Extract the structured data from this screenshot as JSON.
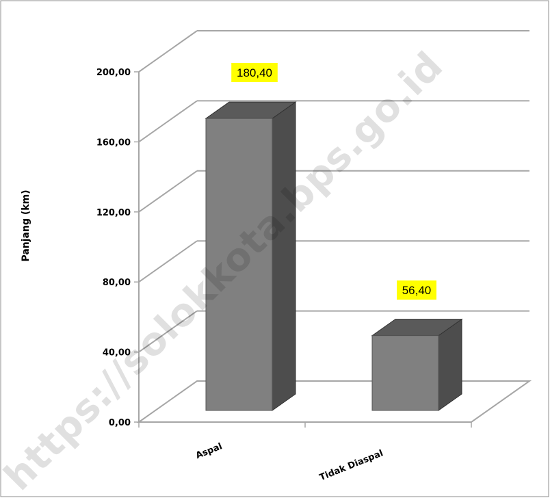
{
  "chart_data": {
    "type": "bar",
    "categories": [
      "Aspal",
      "Tidak Diaspal"
    ],
    "values": [
      180.4,
      56.4
    ],
    "data_labels": [
      "180,40",
      "56,40"
    ],
    "ylabel": "Panjang (km)",
    "ylim": [
      0,
      200
    ],
    "yticks": [
      "0,00",
      "40,00",
      "80,00",
      "120,00",
      "160,00",
      "200,00"
    ],
    "grid": true,
    "legend": "none",
    "bar_color": "#808080",
    "label_bg_color": "#ffff00"
  },
  "watermark": "https://solokkota.bps.go.id"
}
